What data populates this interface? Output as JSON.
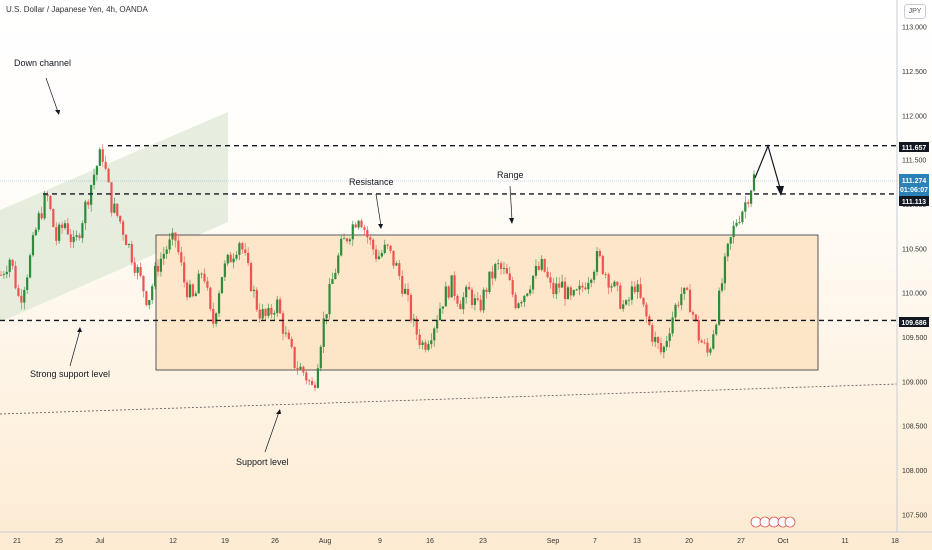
{
  "header": {
    "symbol_title": "U.S. Dollar / Japanese Yen, 4h, OANDA",
    "currency_badge": "JPY"
  },
  "colors": {
    "up": "#26a69a",
    "up_dark": "#2e8b3c",
    "down": "#ef5350",
    "range_fill": "#fde3c2",
    "channel_fill": "#dfe8d6",
    "dashed": "#131722",
    "price_line": "#7fb1d4",
    "current_badge": "#2a82b8"
  },
  "chart_data": {
    "type": "candlestick",
    "x_ticks": [
      "21",
      "25",
      "Jul",
      "12",
      "19",
      "26",
      "Aug",
      "9",
      "16",
      "23",
      "Sep",
      "7",
      "13",
      "20",
      "27",
      "Oct",
      "11",
      "18"
    ],
    "y_ticks": [
      "113.000",
      "112.500",
      "112.000",
      "111.500",
      "111.000",
      "110.500",
      "110.000",
      "109.500",
      "109.000",
      "108.500",
      "108.000",
      "107.500"
    ],
    "y_tick_values": [
      113.0,
      112.5,
      112.0,
      111.5,
      111.0,
      110.5,
      110.0,
      109.5,
      109.0,
      108.5,
      108.0,
      107.5
    ],
    "ylim": [
      107.3,
      113.3
    ],
    "levels": [
      {
        "price": 111.657,
        "label": "111.657"
      },
      {
        "price": 111.113,
        "label": "111.113"
      },
      {
        "price": 109.686,
        "label": "109.686"
      }
    ],
    "current_price": {
      "label": "111.274",
      "timer": "01:06:07",
      "price": 111.274
    },
    "range_box": {
      "from": 110.67,
      "to": 109.13
    },
    "annotations": [
      {
        "key": "down_channel",
        "text": "Down channel"
      },
      {
        "key": "resistance",
        "text": "Resistance"
      },
      {
        "key": "range",
        "text": "Range"
      },
      {
        "key": "strong_support",
        "text": "Strong support level"
      },
      {
        "key": "support",
        "text": "Support level"
      }
    ],
    "close_path": [
      110.2,
      110.4,
      109.9,
      110.3,
      110.8,
      111.1,
      110.6,
      110.8,
      110.5,
      110.9,
      111.3,
      111.6,
      111.0,
      110.8,
      110.5,
      110.2,
      109.9,
      110.3,
      110.5,
      110.6,
      110.1,
      109.9,
      110.3,
      109.6,
      110.2,
      110.4,
      110.6,
      110.2,
      109.8,
      109.7,
      109.9,
      109.5,
      109.2,
      109.1,
      108.9,
      109.6,
      110.1,
      110.5,
      110.7,
      110.9,
      110.6,
      110.4,
      110.5,
      110.3,
      110.0,
      109.6,
      109.4,
      109.6,
      109.9,
      110.1,
      109.9,
      110.0,
      109.8,
      110.1,
      110.3,
      110.2,
      109.9,
      110.0,
      110.2,
      110.3,
      110.0,
      110.1,
      109.9,
      110.0,
      110.2,
      110.4,
      110.2,
      110.0,
      109.8,
      110.1,
      109.8,
      109.5,
      109.3,
      109.7,
      110.0,
      109.9,
      109.5,
      109.3,
      109.8,
      110.4,
      110.8,
      111.0,
      111.3
    ]
  }
}
